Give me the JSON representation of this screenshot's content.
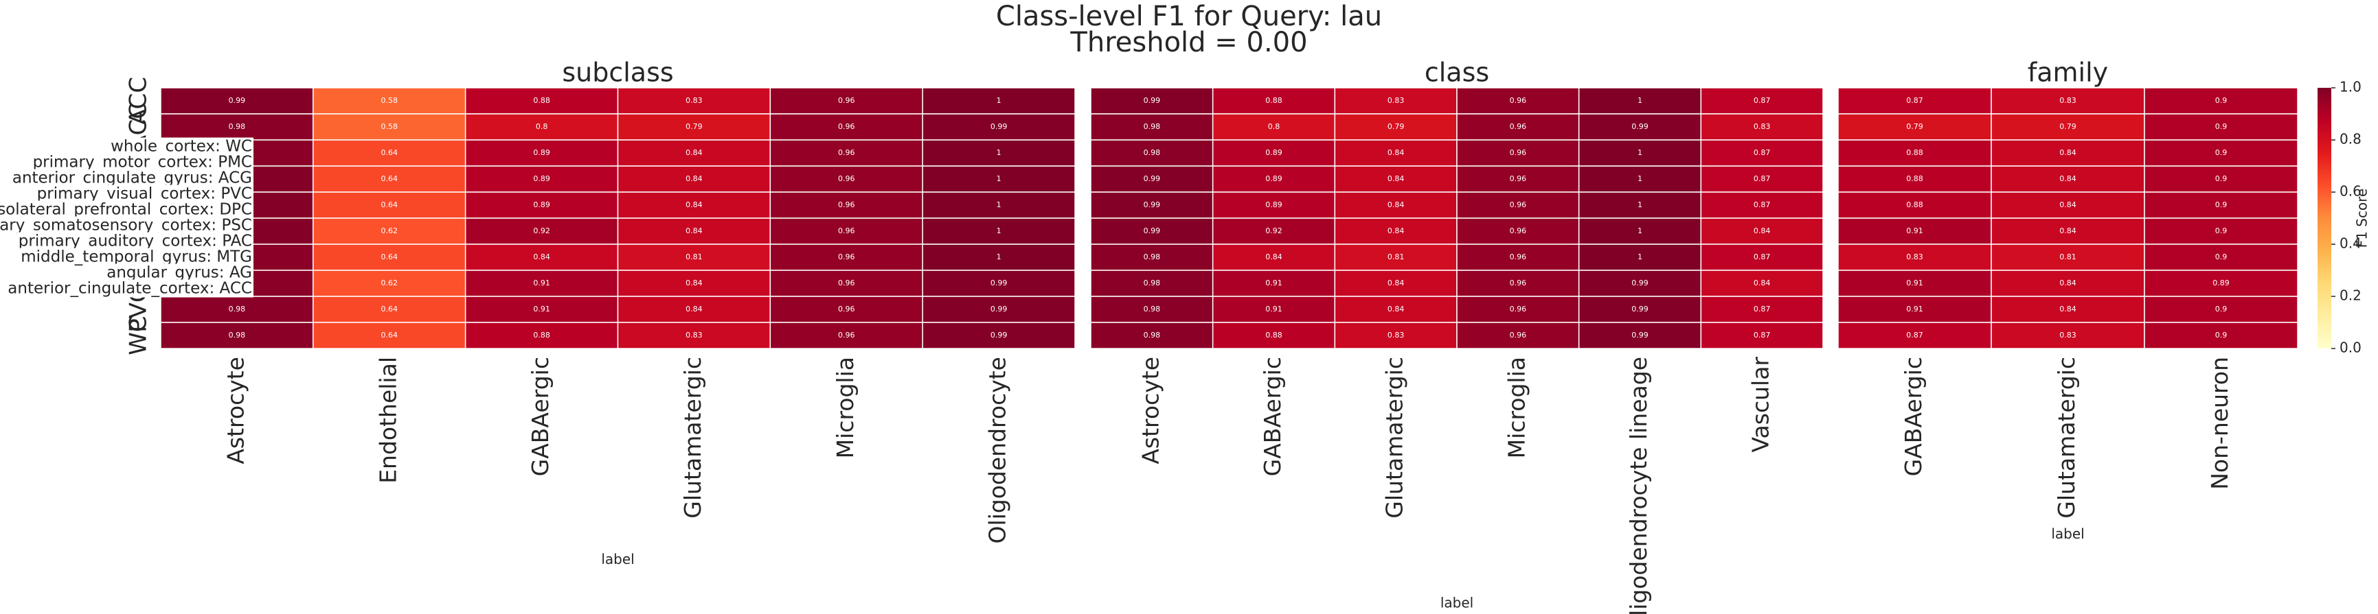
{
  "figure": {
    "title": "Class-level F1 for Query: lau",
    "subtitle": "Threshold = 0.00",
    "row_tags": [
      "ACC",
      "ACC",
      null,
      null,
      null,
      null,
      null,
      null,
      "PVC",
      "WC"
    ],
    "row_labels": [
      "whole_cortex: WC",
      "primary_motor_cortex: PMC",
      "anterior_cingulate_gyrus: ACG",
      "primary_visual_cortex: PVC",
      "dorsolateral_prefrontal_cortex: DPC",
      "primary_somatosensory_cortex: PSC",
      "primary_auditory_cortex: PAC",
      "middle_temporal_gyrus: MTG",
      "angular_gyrus: AG",
      "anterior_cingulate_cortex: ACC"
    ],
    "colorbar": {
      "label": "F1 Score",
      "lim": [
        0,
        1
      ],
      "ticks": [
        {
          "value": 0,
          "label": "0.0"
        },
        0.2,
        0.4,
        0.6,
        0.8,
        {
          "value": 1,
          "label": "1.0"
        }
      ],
      "colors": [
        "#ffffcc",
        "#ffeda0",
        "#fed976",
        "#feb24c",
        "#fd8d3c",
        "#fc4e2a",
        "#e31a1c",
        "#bd0026",
        "#800026"
      ]
    }
  },
  "chart_data": [
    {
      "type": "heatmap",
      "title": "subclass",
      "x_label": "label",
      "categories": [
        "Astrocyte",
        "Endothelial",
        "GABAergic",
        "Glutamatergic",
        "Microglia",
        "Oligodendrocyte"
      ],
      "values": [
        [
          0.99,
          0.58,
          0.88,
          0.83,
          0.96,
          1
        ],
        [
          0.98,
          0.58,
          0.8,
          0.79,
          0.96,
          0.99
        ],
        [
          0.98,
          0.64,
          0.89,
          0.84,
          0.96,
          1
        ],
        [
          0.99,
          0.64,
          0.89,
          0.84,
          0.96,
          1
        ],
        [
          0.99,
          0.64,
          0.89,
          0.84,
          0.96,
          1
        ],
        [
          0.99,
          0.62,
          0.92,
          0.84,
          0.96,
          1
        ],
        [
          0.98,
          0.64,
          0.84,
          0.81,
          0.96,
          1
        ],
        [
          0.98,
          0.62,
          0.91,
          0.84,
          0.96,
          0.99
        ],
        [
          0.98,
          0.64,
          0.91,
          0.84,
          0.96,
          0.99
        ],
        [
          0.98,
          0.64,
          0.88,
          0.83,
          0.96,
          0.99
        ]
      ]
    },
    {
      "type": "heatmap",
      "title": "class",
      "x_label": "label",
      "categories": [
        "Astrocyte",
        "GABAergic",
        "Glutamatergic",
        "Microglia",
        "Oligodendrocyte lineage",
        "Vascular"
      ],
      "values": [
        [
          0.99,
          0.88,
          0.83,
          0.96,
          1,
          0.87
        ],
        [
          0.98,
          0.8,
          0.79,
          0.96,
          0.99,
          0.83
        ],
        [
          0.98,
          0.89,
          0.84,
          0.96,
          1,
          0.87
        ],
        [
          0.99,
          0.89,
          0.84,
          0.96,
          1,
          0.87
        ],
        [
          0.99,
          0.89,
          0.84,
          0.96,
          1,
          0.87
        ],
        [
          0.99,
          0.92,
          0.84,
          0.96,
          1,
          0.84
        ],
        [
          0.98,
          0.84,
          0.81,
          0.96,
          1,
          0.87
        ],
        [
          0.98,
          0.91,
          0.84,
          0.96,
          0.99,
          0.84
        ],
        [
          0.98,
          0.91,
          0.84,
          0.96,
          0.99,
          0.87
        ],
        [
          0.98,
          0.88,
          0.83,
          0.96,
          0.99,
          0.87
        ]
      ]
    },
    {
      "type": "heatmap",
      "title": "family",
      "x_label": "label",
      "categories": [
        "GABAergic",
        "Glutamatergic",
        "Non-neuron"
      ],
      "values": [
        [
          0.87,
          0.83,
          0.9
        ],
        [
          0.79,
          0.79,
          0.9
        ],
        [
          0.88,
          0.84,
          0.9
        ],
        [
          0.88,
          0.84,
          0.9
        ],
        [
          0.88,
          0.84,
          0.9
        ],
        [
          0.91,
          0.84,
          0.9
        ],
        [
          0.83,
          0.81,
          0.9
        ],
        [
          0.91,
          0.84,
          0.89
        ],
        [
          0.91,
          0.84,
          0.9
        ],
        [
          0.87,
          0.83,
          0.9
        ]
      ]
    }
  ]
}
